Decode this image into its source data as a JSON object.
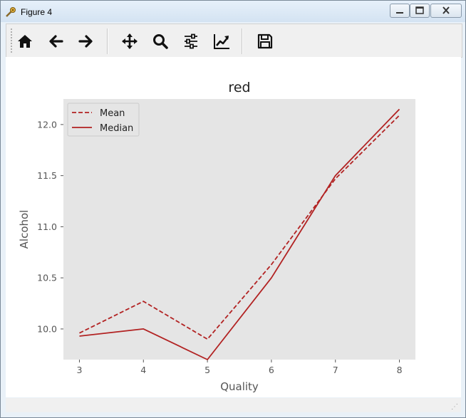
{
  "window": {
    "title": "Figure 4",
    "controls": {
      "minimize": "minimize",
      "maximize": "maximize",
      "close": "close"
    }
  },
  "toolbar": {
    "buttons": [
      {
        "name": "home-button",
        "icon": "home-icon",
        "tooltip": "Reset original view"
      },
      {
        "name": "back-button",
        "icon": "arrow-left-icon",
        "tooltip": "Back to previous view"
      },
      {
        "name": "forward-button",
        "icon": "arrow-right-icon",
        "tooltip": "Forward to next view"
      },
      {
        "name": "pan-button",
        "icon": "move-icon",
        "tooltip": "Pan axes"
      },
      {
        "name": "zoom-button",
        "icon": "magnifier-icon",
        "tooltip": "Zoom to rectangle"
      },
      {
        "name": "subplots-button",
        "icon": "sliders-icon",
        "tooltip": "Configure subplots"
      },
      {
        "name": "axes-button",
        "icon": "chart-line-icon",
        "tooltip": "Edit axis"
      },
      {
        "name": "save-button",
        "icon": "floppy-disk-icon",
        "tooltip": "Save the figure"
      }
    ]
  },
  "colors": {
    "line": "#b22222",
    "plot_bg": "#e5e5e5",
    "tick": "#555555"
  },
  "chart_data": {
    "type": "line",
    "title": "red",
    "xlabel": "Quality",
    "ylabel": "Alcohol",
    "x": [
      3,
      4,
      5,
      6,
      7,
      8
    ],
    "xlim": [
      2.75,
      8.25
    ],
    "ylim": [
      9.7,
      12.25
    ],
    "xticks": [
      3,
      4,
      5,
      6,
      7,
      8
    ],
    "yticks": [
      10.0,
      10.5,
      11.0,
      11.5,
      12.0
    ],
    "ytick_labels": [
      "10.0",
      "10.5",
      "11.0",
      "11.5",
      "12.0"
    ],
    "series": [
      {
        "name": "Mean",
        "style": "dashed",
        "values": [
          9.96,
          10.27,
          9.9,
          10.63,
          11.47,
          12.09
        ]
      },
      {
        "name": "Median",
        "style": "solid",
        "values": [
          9.93,
          10.0,
          9.7,
          10.5,
          11.5,
          12.15
        ]
      }
    ],
    "legend": "top-left",
    "grid": false
  }
}
